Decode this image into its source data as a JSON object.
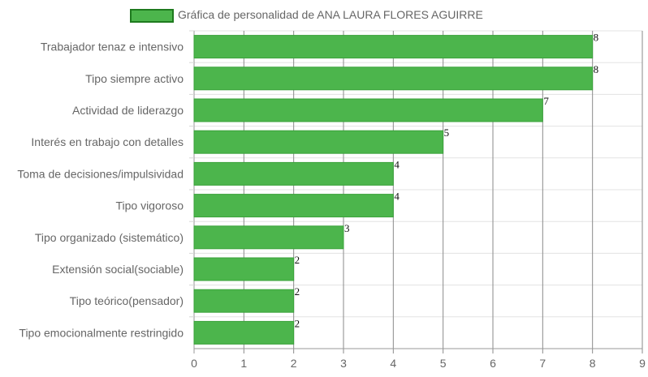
{
  "chart_data": {
    "type": "bar",
    "orientation": "horizontal",
    "legend": {
      "label": "Gráfica de personalidad de ANA LAURA FLORES AGUIRRE",
      "position": "top"
    },
    "categories": [
      "Trabajador tenaz e intensivo",
      "Tipo siempre activo",
      "Actividad de liderazgo",
      "Interés en trabajo con detalles",
      "Toma de decisiones/impulsividad",
      "Tipo vigoroso",
      "Tipo organizado (sistemático)",
      "Extensión social(sociable)",
      "Tipo teórico(pensador)",
      "Tipo emocionalmente restringido"
    ],
    "values": [
      8,
      8,
      7,
      5,
      4,
      4,
      3,
      2,
      2,
      2
    ],
    "xlim": [
      0,
      9
    ],
    "xticks": [
      "0",
      "1",
      "2",
      "3",
      "4",
      "5",
      "6",
      "7",
      "8",
      "9"
    ],
    "grid": true,
    "colors": {
      "bar_fill": "#4cb54c",
      "bar_border": "#3aa23a",
      "legend_border": "#1e7a1e"
    }
  }
}
